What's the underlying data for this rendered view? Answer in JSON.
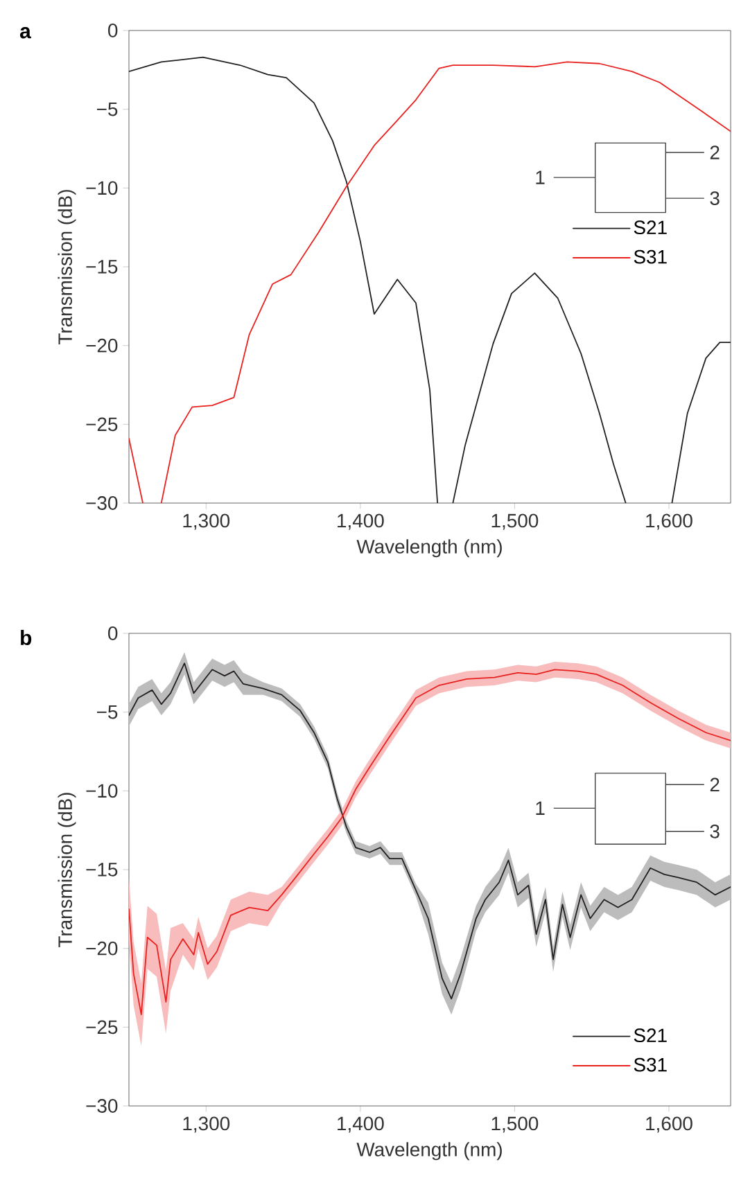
{
  "chart_data": [
    {
      "type": "line",
      "title": "a",
      "xlabel": "Wavelength (nm)",
      "ylabel": "Transmission (dB)",
      "xlim": [
        1250,
        1640
      ],
      "ylim": [
        -30,
        0
      ],
      "xticks": [
        {
          "value": 1300,
          "label": "1,300"
        },
        {
          "value": 1400,
          "label": "1,400"
        },
        {
          "value": 1500,
          "label": "1,500"
        },
        {
          "value": 1600,
          "label": "1,600"
        }
      ],
      "yticks": [
        0,
        {
          "value": -5,
          "label": "−5"
        },
        {
          "value": -10,
          "label": "−10"
        },
        {
          "value": -15,
          "label": "−15"
        },
        {
          "value": -20,
          "label": "−20"
        },
        {
          "value": -25,
          "label": "−25"
        },
        {
          "value": -30,
          "label": "−30"
        }
      ],
      "legend": "right",
      "annotations": [
        "1",
        "2",
        "3"
      ],
      "series": [
        {
          "name": "S21",
          "color": "#231f20",
          "x": [
            1250,
            1271,
            1298,
            1322,
            1340,
            1352,
            1370,
            1382,
            1391,
            1400,
            1409,
            1424,
            1436,
            1445,
            1450,
            1455,
            1460,
            1468,
            1486,
            1498,
            1513,
            1528,
            1543,
            1555,
            1564,
            1572,
            1587,
            1602,
            1612,
            1624,
            1633,
            1640
          ],
          "values": [
            -2.6,
            -2.0,
            -1.7,
            -2.2,
            -2.8,
            -3.0,
            -4.6,
            -7.0,
            -9.6,
            -13.4,
            -18.0,
            -15.8,
            -17.3,
            -22.8,
            -30,
            null,
            -30,
            -26.3,
            -19.9,
            -16.7,
            -15.4,
            -17.0,
            -20.5,
            -24.3,
            -27.5,
            -30,
            null,
            -30,
            -24.3,
            -20.8,
            -19.8,
            -19.8
          ]
        },
        {
          "name": "S31",
          "color": "#e8211f",
          "x": [
            1250,
            1259,
            1265,
            1271,
            1280,
            1291,
            1304,
            1318,
            1328,
            1343,
            1355,
            1373,
            1391,
            1409,
            1424,
            1436,
            1451,
            1460,
            1486,
            1513,
            1534,
            1555,
            1576,
            1594,
            1618,
            1640
          ],
          "values": [
            -25.9,
            -30,
            null,
            -30,
            -25.7,
            -23.9,
            -23.8,
            -23.3,
            -19.3,
            -16.1,
            -15.5,
            -12.8,
            -9.9,
            -7.3,
            -5.7,
            -4.4,
            -2.4,
            -2.2,
            -2.2,
            -2.3,
            -2.0,
            -2.1,
            -2.6,
            -3.3,
            -4.9,
            -6.4
          ]
        }
      ]
    },
    {
      "type": "line",
      "title": "b",
      "xlabel": "Wavelength (nm)",
      "ylabel": "Transmission (dB)",
      "xlim": [
        1250,
        1640
      ],
      "ylim": [
        -30,
        0
      ],
      "xticks": [
        {
          "value": 1300,
          "label": "1,300"
        },
        {
          "value": 1400,
          "label": "1,400"
        },
        {
          "value": 1500,
          "label": "1,500"
        },
        {
          "value": 1600,
          "label": "1,600"
        }
      ],
      "yticks": [
        0,
        {
          "value": -5,
          "label": "−5"
        },
        {
          "value": -10,
          "label": "−10"
        },
        {
          "value": -15,
          "label": "−15"
        },
        {
          "value": -20,
          "label": "−20"
        },
        {
          "value": -25,
          "label": "−25"
        },
        {
          "value": -30,
          "label": "−30"
        }
      ],
      "legend": "bottom right",
      "annotations": [
        "1",
        "2",
        "3"
      ],
      "series": [
        {
          "name": "S21",
          "color": "#231f20",
          "x": [
            1250,
            1256,
            1265,
            1271,
            1277,
            1286,
            1292,
            1304,
            1312,
            1318,
            1324,
            1337,
            1349,
            1361,
            1370,
            1379,
            1385,
            1391,
            1397,
            1406,
            1413,
            1419,
            1427,
            1436,
            1444,
            1453,
            1459,
            1465,
            1475,
            1481,
            1490,
            1496,
            1502,
            1509,
            1514,
            1520,
            1525,
            1531,
            1536,
            1543,
            1549,
            1558,
            1567,
            1576,
            1588,
            1597,
            1606,
            1618,
            1630,
            1640
          ],
          "values": [
            -5.2,
            -4.1,
            -3.6,
            -4.5,
            -3.8,
            -1.9,
            -3.8,
            -2.3,
            -2.7,
            -2.4,
            -3.2,
            -3.5,
            -3.9,
            -4.9,
            -6.3,
            -8.2,
            -10.5,
            -12.3,
            -13.6,
            -13.9,
            -13.6,
            -14.3,
            -14.3,
            -16.3,
            -18.1,
            -21.9,
            -23.2,
            -21.6,
            -18.1,
            -16.9,
            -15.8,
            -14.4,
            -16.6,
            -16.0,
            -19.1,
            -16.9,
            -20.7,
            -17.2,
            -19.3,
            -16.6,
            -18.1,
            -16.9,
            -17.4,
            -16.9,
            -14.9,
            -15.3,
            -15.5,
            -15.8,
            -16.6,
            -16.1
          ],
          "lower": [
            -5.9,
            -4.8,
            -4.3,
            -5.2,
            -4.5,
            -2.6,
            -4.5,
            -3.0,
            -3.4,
            -3.1,
            -3.9,
            -3.9,
            -4.3,
            -5.3,
            -6.7,
            -8.6,
            -10.9,
            -12.7,
            -14.0,
            -14.3,
            -14.0,
            -14.7,
            -14.7,
            -16.7,
            -19.1,
            -22.9,
            -24.2,
            -22.6,
            -18.9,
            -17.7,
            -16.6,
            -15.2,
            -17.4,
            -16.8,
            -19.9,
            -17.7,
            -21.5,
            -18.0,
            -20.1,
            -17.4,
            -18.9,
            -17.7,
            -18.2,
            -17.7,
            -15.7,
            -16.1,
            -16.3,
            -16.6,
            -17.4,
            -16.9
          ],
          "upper": [
            -4.5,
            -3.4,
            -2.9,
            -3.8,
            -3.1,
            -1.2,
            -3.1,
            -1.6,
            -2.0,
            -1.7,
            -2.5,
            -3.1,
            -3.5,
            -4.5,
            -5.9,
            -7.8,
            -10.1,
            -11.9,
            -13.2,
            -13.5,
            -13.2,
            -13.9,
            -13.9,
            -15.9,
            -17.1,
            -20.9,
            -22.2,
            -20.6,
            -17.3,
            -16.1,
            -15.0,
            -13.6,
            -15.8,
            -15.2,
            -18.3,
            -16.1,
            -19.9,
            -16.4,
            -18.5,
            -15.8,
            -17.3,
            -16.1,
            -16.6,
            -16.1,
            -14.1,
            -14.5,
            -14.7,
            -15.0,
            -15.8,
            -15.3
          ]
        },
        {
          "name": "S31",
          "color": "#e8211f",
          "x": [
            1250,
            1253,
            1258,
            1262,
            1268,
            1274,
            1277,
            1285,
            1292,
            1295,
            1301,
            1307,
            1316,
            1328,
            1340,
            1349,
            1358,
            1370,
            1379,
            1388,
            1397,
            1406,
            1418,
            1427,
            1436,
            1451,
            1469,
            1487,
            1502,
            1514,
            1526,
            1541,
            1553,
            1570,
            1588,
            1606,
            1624,
            1640
          ],
          "values": [
            -17.5,
            -21.6,
            -24.2,
            -19.3,
            -19.8,
            -23.4,
            -20.7,
            -19.4,
            -20.4,
            -19.0,
            -21.0,
            -20.2,
            -17.9,
            -17.4,
            -17.6,
            -16.6,
            -15.5,
            -14.0,
            -12.9,
            -11.7,
            -9.9,
            -8.5,
            -6.7,
            -5.4,
            -4.1,
            -3.3,
            -2.9,
            -2.8,
            -2.5,
            -2.6,
            -2.3,
            -2.4,
            -2.6,
            -3.3,
            -4.4,
            -5.4,
            -6.3,
            -6.8
          ],
          "lower": [
            -19.5,
            -23.6,
            -26.2,
            -21.3,
            -21.8,
            -25.4,
            -22.7,
            -20.4,
            -21.4,
            -20.0,
            -22.0,
            -21.2,
            -18.9,
            -18.4,
            -18.6,
            -17.1,
            -16.0,
            -14.5,
            -13.4,
            -12.2,
            -10.4,
            -9.0,
            -7.2,
            -5.9,
            -4.6,
            -3.8,
            -3.4,
            -3.3,
            -3.0,
            -3.1,
            -2.8,
            -2.9,
            -3.1,
            -3.8,
            -4.9,
            -5.9,
            -6.8,
            -7.3
          ],
          "upper": [
            -15.5,
            -19.6,
            -22.2,
            -17.3,
            -17.8,
            -21.4,
            -18.7,
            -18.4,
            -19.4,
            -18.0,
            -20.0,
            -19.2,
            -16.9,
            -16.4,
            -16.6,
            -16.1,
            -15.0,
            -13.5,
            -12.4,
            -11.2,
            -9.4,
            -8.0,
            -6.2,
            -4.9,
            -3.6,
            -2.8,
            -2.4,
            -2.3,
            -2.0,
            -2.1,
            -1.8,
            -1.9,
            -2.1,
            -2.8,
            -3.9,
            -4.9,
            -5.8,
            -6.3
          ]
        }
      ]
    }
  ]
}
